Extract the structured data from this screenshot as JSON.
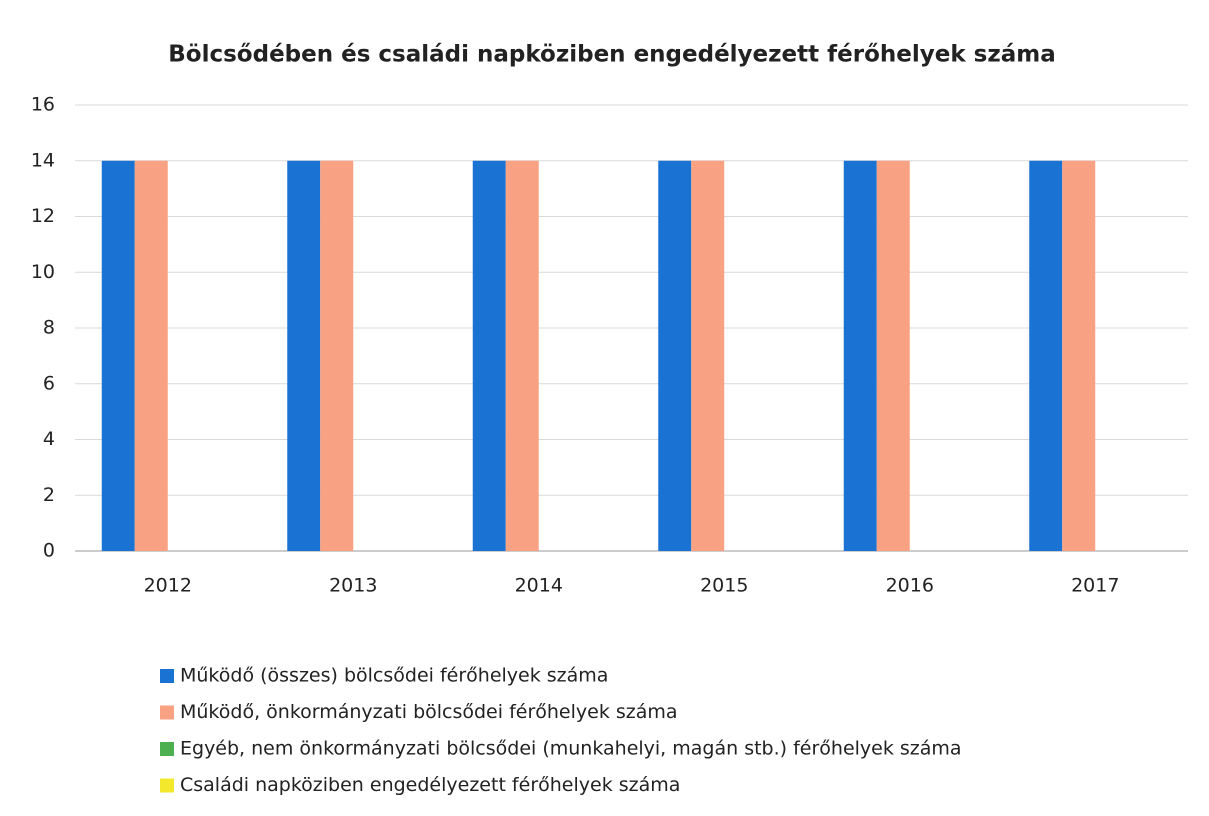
{
  "chart_data": {
    "type": "bar",
    "title": "Bölcsődében és családi napköziben engedélyezett férőhelyek száma",
    "categories": [
      "2012",
      "2013",
      "2014",
      "2015",
      "2016",
      "2017"
    ],
    "series": [
      {
        "name": "Működő (összes) bölcsődei férőhelyek száma",
        "color": "#1a73d3",
        "values": [
          14,
          14,
          14,
          14,
          14,
          14
        ]
      },
      {
        "name": "Működő, önkormányzati bölcsődei férőhelyek száma",
        "color": "#f9a283",
        "values": [
          14,
          14,
          14,
          14,
          14,
          14
        ]
      },
      {
        "name": "Egyéb, nem önkormányzati bölcsődei (munkahelyi, magán stb.) férőhelyek száma",
        "color": "#4caf50",
        "values": [
          0,
          0,
          0,
          0,
          0,
          0
        ]
      },
      {
        "name": "Családi napköziben engedélyezett férőhelyek száma",
        "color": "#f3e82c",
        "values": [
          0,
          0,
          0,
          0,
          0,
          0
        ]
      }
    ],
    "ylim": [
      0,
      16
    ],
    "yticks": [
      0,
      2,
      4,
      6,
      8,
      10,
      12,
      14,
      16
    ],
    "grid": true,
    "legend": "bottom"
  }
}
